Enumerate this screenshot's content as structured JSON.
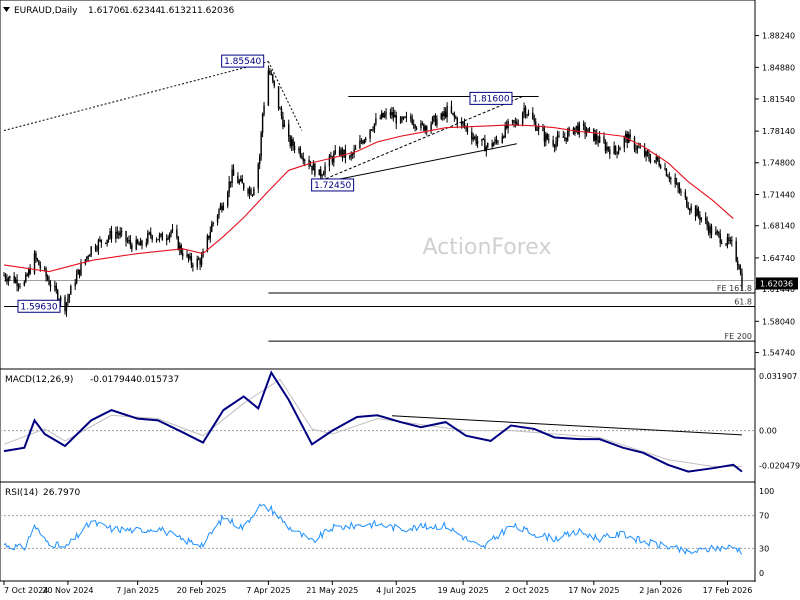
{
  "header": {
    "symbol_label": "EURAUD,Daily",
    "ohlc": [
      "1.61706",
      "1.62344",
      "1.61321",
      "1.62036"
    ]
  },
  "watermark": "ActionForex",
  "colors": {
    "candle": "#000000",
    "ma_line": "#e3101d",
    "macd_line": "#000080",
    "signal_line": "#c0c0c0",
    "rsi_line": "#1e90ff",
    "trendline": "#000000",
    "watermark": "#d0d0d0"
  },
  "chart_data": [
    {
      "type": "candlestick",
      "title": "EURAUD,Daily",
      "ylim": [
        1.53,
        1.902
      ],
      "y_ticks": [
        "1.88240",
        "1.84880",
        "1.81540",
        "1.78140",
        "1.74800",
        "1.71440",
        "1.68140",
        "1.64740",
        "1.61440",
        "1.58040",
        "1.54740"
      ],
      "last_price_label": "1.62036",
      "ma_label": "",
      "x_labels": [
        "7 Oct 2024",
        "20 Nov 2024",
        "7 Jan 2025",
        "20 Feb 2025",
        "7 Apr 2025",
        "21 May 2025",
        "4 Jul 2025",
        "19 Aug 2025",
        "2 Oct 2025",
        "17 Nov 2025",
        "2 Jan 2026",
        "17 Feb 2026"
      ],
      "close_path": [
        [
          "7 Oct 2024",
          1.629
        ],
        [
          "21 Oct 2024",
          1.62
        ],
        [
          "28 Oct 2024",
          1.648
        ],
        [
          "4 Nov 2024",
          1.63
        ],
        [
          "11 Nov 2024",
          1.612
        ],
        [
          "18 Nov 2024",
          1.597
        ],
        [
          "25 Nov 2024",
          1.625
        ],
        [
          "6 Dec 2024",
          1.658
        ],
        [
          "16 Dec 2024",
          1.668
        ],
        [
          "23 Dec 2024",
          1.675
        ],
        [
          "2 Jan 2025",
          1.662
        ],
        [
          "9 Jan 2025",
          1.66
        ],
        [
          "16 Jan 2025",
          1.672
        ],
        [
          "23 Jan 2025",
          1.668
        ],
        [
          "30 Jan 2025",
          1.676
        ],
        [
          "6 Feb 2025",
          1.655
        ],
        [
          "13 Feb 2025",
          1.642
        ],
        [
          "20 Feb 2025",
          1.645
        ],
        [
          "27 Feb 2025",
          1.682
        ],
        [
          "6 Mar 2025",
          1.704
        ],
        [
          "13 Mar 2025",
          1.735
        ],
        [
          "20 Mar 2025",
          1.724
        ],
        [
          "27 Mar 2025",
          1.718
        ],
        [
          "1 Apr 2025",
          1.755
        ],
        [
          "3 Apr 2025",
          1.8
        ],
        [
          "7 Apr 2025",
          1.846
        ],
        [
          "9 Apr 2025",
          1.838
        ],
        [
          "14 Apr 2025",
          1.808
        ],
        [
          "21 Apr 2025",
          1.77
        ],
        [
          "28 Apr 2025",
          1.762
        ],
        [
          "5 May 2025",
          1.748
        ],
        [
          "12 May 2025",
          1.735
        ],
        [
          "19 May 2025",
          1.75
        ],
        [
          "26 May 2025",
          1.76
        ],
        [
          "2 Jun 2025",
          1.752
        ],
        [
          "9 Jun 2025",
          1.768
        ],
        [
          "16 Jun 2025",
          1.785
        ],
        [
          "23 Jun 2025",
          1.795
        ],
        [
          "30 Jun 2025",
          1.8
        ],
        [
          "7 Jul 2025",
          1.79
        ],
        [
          "14 Jul 2025",
          1.795
        ],
        [
          "21 Jul 2025",
          1.785
        ],
        [
          "28 Jul 2025",
          1.791
        ],
        [
          "4 Aug 2025",
          1.795
        ],
        [
          "8 Aug 2025",
          1.803
        ],
        [
          "14 Aug 2025",
          1.794
        ],
        [
          "21 Aug 2025",
          1.785
        ],
        [
          "28 Aug 2025",
          1.772
        ],
        [
          "4 Sep 2025",
          1.765
        ],
        [
          "11 Sep 2025",
          1.77
        ],
        [
          "18 Sep 2025",
          1.785
        ],
        [
          "25 Sep 2025",
          1.79
        ],
        [
          "30 Sep 2025",
          1.806
        ],
        [
          "7 Oct 2025",
          1.79
        ],
        [
          "14 Oct 2025",
          1.775
        ],
        [
          "21 Oct 2025",
          1.77
        ],
        [
          "28 Oct 2025",
          1.775
        ],
        [
          "4 Nov 2025",
          1.785
        ],
        [
          "11 Nov 2025",
          1.782
        ],
        [
          "18 Nov 2025",
          1.775
        ],
        [
          "25 Nov 2025",
          1.765
        ],
        [
          "2 Dec 2025",
          1.76
        ],
        [
          "9 Dec 2025",
          1.775
        ],
        [
          "16 Dec 2025",
          1.765
        ],
        [
          "23 Dec 2025",
          1.755
        ],
        [
          "2 Jan 2026",
          1.748
        ],
        [
          "9 Jan 2026",
          1.732
        ],
        [
          "16 Jan 2026",
          1.715
        ],
        [
          "23 Jan 2026",
          1.7
        ],
        [
          "30 Jan 2026",
          1.69
        ],
        [
          "6 Feb 2026",
          1.675
        ],
        [
          "13 Feb 2026",
          1.668
        ],
        [
          "20 Feb 2026",
          1.66
        ],
        [
          "25 Feb 2026",
          1.64
        ],
        [
          "27 Feb 2026",
          1.62
        ]
      ],
      "ma_path": [
        [
          "7 Oct 2024",
          1.64
        ],
        [
          "7 Nov 2024",
          1.633
        ],
        [
          "7 Dec 2024",
          1.645
        ],
        [
          "7 Jan 2025",
          1.652
        ],
        [
          "7 Feb 2025",
          1.657
        ],
        [
          "21 Feb 2025",
          1.652
        ],
        [
          "7 Mar 2025",
          1.67
        ],
        [
          "21 Mar 2025",
          1.69
        ],
        [
          "7 Apr 2025",
          1.718
        ],
        [
          "21 Apr 2025",
          1.74
        ],
        [
          "7 May 2025",
          1.748
        ],
        [
          "21 May 2025",
          1.753
        ],
        [
          "7 Jun 2025",
          1.76
        ],
        [
          "21 Jun 2025",
          1.77
        ],
        [
          "7 Jul 2025",
          1.776
        ],
        [
          "21 Jul 2025",
          1.78
        ],
        [
          "7 Aug 2025",
          1.785
        ],
        [
          "21 Aug 2025",
          1.786
        ],
        [
          "7 Sep 2025",
          1.787
        ],
        [
          "21 Sep 2025",
          1.788
        ],
        [
          "7 Oct 2025",
          1.787
        ],
        [
          "21 Oct 2025",
          1.785
        ],
        [
          "7 Nov 2025",
          1.781
        ],
        [
          "21 Nov 2025",
          1.779
        ],
        [
          "7 Dec 2025",
          1.776
        ],
        [
          "21 Dec 2025",
          1.765
        ],
        [
          "7 Jan 2026",
          1.748
        ],
        [
          "21 Jan 2026",
          1.728
        ],
        [
          "7 Feb 2026",
          1.708
        ],
        [
          "21 Feb 2026",
          1.689
        ]
      ],
      "price_labels": [
        {
          "text": "1.85540",
          "date": "1 Apr 2025",
          "value": 1.8554
        },
        {
          "text": "1.72450",
          "date": "4 May 2025",
          "value": 1.7245
        },
        {
          "text": "1.81600",
          "date": "21 Aug 2025",
          "value": 1.816
        },
        {
          "text": "1.59630",
          "date": "7 Oct 2024",
          "value": 1.5963
        }
      ],
      "horizontal_lines": [
        {
          "from": "7 Oct 2024",
          "to": "30 Mar 2026",
          "value": 1.6235,
          "color": "#a0a0a0",
          "label": ""
        },
        {
          "from": "7 Apr 2025",
          "to": "30 Mar 2026",
          "value": 1.6103,
          "color": "#000000",
          "label": "FE 161.8"
        },
        {
          "from": "7 Oct 2024",
          "to": "30 Mar 2026",
          "value": 1.596,
          "color": "#000000",
          "label": "61.8"
        },
        {
          "from": "7 Apr 2025",
          "to": "30 Mar 2026",
          "value": 1.5595,
          "color": "#000000",
          "label": "FE 200"
        }
      ],
      "trendlines": [
        {
          "from": [
            "7 Oct 2024",
            1.782
          ],
          "to": [
            "7 Apr 2025",
            1.855
          ],
          "style": "dotted"
        },
        {
          "from": [
            "7 Apr 2025",
            1.855
          ],
          "to": [
            "30 Apr 2025",
            1.782
          ],
          "style": "dotted"
        },
        {
          "from": [
            "7 May 2025",
            1.725
          ],
          "to": [
            "29 Sep 2025",
            1.818
          ],
          "style": "dashed"
        },
        {
          "from": [
            "7 May 2025",
            1.725
          ],
          "to": [
            "25 Sep 2025",
            1.768
          ],
          "style": "solid"
        },
        {
          "from": [
            "1 Jun 2025",
            1.818
          ],
          "to": [
            "10 Oct 2025",
            1.818
          ],
          "style": "solid"
        }
      ]
    },
    {
      "type": "line",
      "title": "MACD(12,26,9)",
      "values_label": [
        "-0.017944",
        "-0.015737"
      ],
      "ylim": [
        -0.0295,
        0.0355
      ],
      "y_ticks": [
        "0.031907",
        "0.00",
        "-0.020479"
      ],
      "zero_line": 0,
      "series": [
        {
          "name": "MACD",
          "path": [
            [
              "7 Oct 2024",
              -0.012
            ],
            [
              "21 Oct 2024",
              -0.01
            ],
            [
              "28 Oct 2024",
              0.006
            ],
            [
              "4 Nov 2024",
              -0.002
            ],
            [
              "18 Nov 2024",
              -0.009
            ],
            [
              "6 Dec 2024",
              0.006
            ],
            [
              "20 Dec 2024",
              0.012
            ],
            [
              "7 Jan 2025",
              0.007
            ],
            [
              "21 Jan 2025",
              0.006
            ],
            [
              "7 Feb 2025",
              -0.001
            ],
            [
              "21 Feb 2025",
              -0.007
            ],
            [
              "7 Mar 2025",
              0.012
            ],
            [
              "21 Mar 2025",
              0.02
            ],
            [
              "31 Mar 2025",
              0.013
            ],
            [
              "9 Apr 2025",
              0.034
            ],
            [
              "21 Apr 2025",
              0.018
            ],
            [
              "7 May 2025",
              -0.008
            ],
            [
              "21 May 2025",
              0.0
            ],
            [
              "7 Jun 2025",
              0.008
            ],
            [
              "21 Jun 2025",
              0.009
            ],
            [
              "7 Jul 2025",
              0.005
            ],
            [
              "21 Jul 2025",
              0.002
            ],
            [
              "7 Aug 2025",
              0.005
            ],
            [
              "21 Aug 2025",
              -0.003
            ],
            [
              "7 Sep 2025",
              -0.006
            ],
            [
              "21 Sep 2025",
              0.003
            ],
            [
              "7 Oct 2025",
              0.001
            ],
            [
              "21 Oct 2025",
              -0.004
            ],
            [
              "7 Nov 2025",
              -0.005
            ],
            [
              "21 Nov 2025",
              -0.005
            ],
            [
              "7 Dec 2025",
              -0.01
            ],
            [
              "21 Dec 2025",
              -0.013
            ],
            [
              "7 Jan 2026",
              -0.02
            ],
            [
              "21 Jan 2026",
              -0.024
            ],
            [
              "7 Feb 2026",
              -0.022
            ],
            [
              "21 Feb 2026",
              -0.02
            ],
            [
              "27 Feb 2026",
              -0.024
            ]
          ]
        },
        {
          "name": "Signal",
          "path": [
            [
              "7 Oct 2024",
              -0.008
            ],
            [
              "4 Nov 2024",
              0.001
            ],
            [
              "18 Nov 2024",
              -0.006
            ],
            [
              "20 Dec 2024",
              0.009
            ],
            [
              "21 Jan 2025",
              0.007
            ],
            [
              "21 Feb 2025",
              -0.003
            ],
            [
              "21 Mar 2025",
              0.016
            ],
            [
              "15 Apr 2025",
              0.03
            ],
            [
              "7 May 2025",
              0.001
            ],
            [
              "21 May 2025",
              -0.002
            ],
            [
              "21 Jun 2025",
              0.007
            ],
            [
              "21 Aug 2025",
              0.0
            ],
            [
              "21 Sep 2025",
              0.0
            ],
            [
              "21 Nov 2025",
              -0.004
            ],
            [
              "7 Jan 2026",
              -0.017
            ],
            [
              "7 Feb 2026",
              -0.021
            ],
            [
              "27 Feb 2026",
              -0.021
            ]
          ]
        }
      ],
      "trendline": {
        "from": [
          "1 Jul 2025",
          0.0087
        ],
        "to": [
          "27 Feb 2026",
          -0.0025
        ]
      }
    },
    {
      "type": "line",
      "title": "RSI(14)",
      "value_label": "26.7970",
      "ylim": [
        0,
        100
      ],
      "y_ticks": [
        "100",
        "70",
        "30",
        "0"
      ],
      "levels": [
        70,
        30
      ],
      "series": [
        {
          "name": "RSI",
          "path": [
            [
              "7 Oct 2024",
              35
            ],
            [
              "21 Oct 2024",
              30
            ],
            [
              "28 Oct 2024",
              58
            ],
            [
              "4 Nov 2024",
              40
            ],
            [
              "18 Nov 2024",
              30
            ],
            [
              "6 Dec 2024",
              62
            ],
            [
              "20 Dec 2024",
              54
            ],
            [
              "7 Jan 2025",
              52
            ],
            [
              "21 Jan 2025",
              55
            ],
            [
              "7 Feb 2025",
              40
            ],
            [
              "21 Feb 2025",
              35
            ],
            [
              "7 Mar 2025",
              68
            ],
            [
              "21 Mar 2025",
              55
            ],
            [
              "31 Mar 2025",
              82
            ],
            [
              "9 Apr 2025",
              78
            ],
            [
              "21 Apr 2025",
              56
            ],
            [
              "7 May 2025",
              38
            ],
            [
              "21 May 2025",
              55
            ],
            [
              "7 Jun 2025",
              58
            ],
            [
              "21 Jun 2025",
              60
            ],
            [
              "7 Jul 2025",
              54
            ],
            [
              "21 Jul 2025",
              56
            ],
            [
              "7 Aug 2025",
              58
            ],
            [
              "21 Aug 2025",
              42
            ],
            [
              "1 Sep 2025",
              30
            ],
            [
              "21 Sep 2025",
              58
            ],
            [
              "7 Oct 2025",
              48
            ],
            [
              "21 Oct 2025",
              42
            ],
            [
              "7 Nov 2025",
              50
            ],
            [
              "21 Nov 2025",
              42
            ],
            [
              "7 Dec 2025",
              48
            ],
            [
              "21 Dec 2025",
              38
            ],
            [
              "7 Jan 2026",
              32
            ],
            [
              "21 Jan 2026",
              25
            ],
            [
              "7 Feb 2026",
              30
            ],
            [
              "21 Feb 2026",
              32
            ],
            [
              "27 Feb 2026",
              27
            ]
          ]
        }
      ]
    }
  ]
}
